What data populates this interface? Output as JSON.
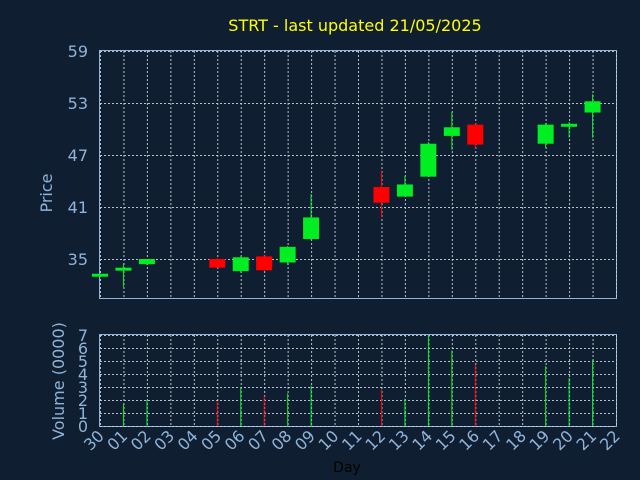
{
  "chart_data": {
    "type": "candlestick",
    "title": "STRT - last updated 21/05/2025",
    "colors": {
      "background": "#0f1f31",
      "up": "#00ee22",
      "down": "#ff0000",
      "title": "#ffff00",
      "text": "#8fb3d9",
      "grid": "#c8d4e0",
      "xlabel": "#000000"
    },
    "price_panel": {
      "ylabel": "Price",
      "yticks": [
        35,
        41,
        47,
        53,
        59
      ],
      "ylim": [
        30.5,
        59
      ]
    },
    "volume_panel": {
      "ylabel": "Volume (0000)",
      "yticks": [
        0,
        1,
        2,
        3,
        4,
        5,
        6,
        7
      ],
      "ylim": [
        0,
        7
      ]
    },
    "xlabel": "Day",
    "xticks": [
      "30",
      "01",
      "02",
      "03",
      "04",
      "05",
      "06",
      "07",
      "08",
      "09",
      "10",
      "11",
      "12",
      "13",
      "14",
      "15",
      "16",
      "17",
      "18",
      "19",
      "20",
      "21",
      "22"
    ],
    "candles": [
      {
        "day": "30",
        "open": 33.0,
        "high": 33.3,
        "low": 32.9,
        "close": 33.3,
        "volume": 0
      },
      {
        "day": "01",
        "open": 33.7,
        "high": 34.5,
        "low": 31.8,
        "close": 34.0,
        "volume": 1.7
      },
      {
        "day": "02",
        "open": 34.4,
        "high": 35.0,
        "low": 34.3,
        "close": 35.0,
        "volume": 2.0
      },
      {
        "day": "05",
        "open": 35.0,
        "high": 35.1,
        "low": 34.0,
        "close": 34.0,
        "volume": 1.9
      },
      {
        "day": "06",
        "open": 33.6,
        "high": 35.3,
        "low": 33.4,
        "close": 35.2,
        "volume": 3.0
      },
      {
        "day": "07",
        "open": 35.3,
        "high": 35.5,
        "low": 33.6,
        "close": 33.7,
        "volume": 2.3
      },
      {
        "day": "08",
        "open": 34.6,
        "high": 36.5,
        "low": 34.3,
        "close": 36.4,
        "volume": 2.5
      },
      {
        "day": "09",
        "open": 37.3,
        "high": 42.5,
        "low": 37.2,
        "close": 39.8,
        "volume": 3.1
      },
      {
        "day": "12",
        "open": 43.3,
        "high": 45.2,
        "low": 39.8,
        "close": 41.5,
        "volume": 2.8
      },
      {
        "day": "13",
        "open": 42.2,
        "high": 44.6,
        "low": 42.2,
        "close": 43.6,
        "volume": 2.1
      },
      {
        "day": "14",
        "open": 44.5,
        "high": 48.5,
        "low": 44.5,
        "close": 48.3,
        "volume": 7.0
      },
      {
        "day": "15",
        "open": 49.2,
        "high": 52.0,
        "low": 47.6,
        "close": 50.2,
        "volume": 5.8
      },
      {
        "day": "16",
        "open": 50.5,
        "high": 50.7,
        "low": 47.7,
        "close": 48.2,
        "volume": 4.7
      },
      {
        "day": "19",
        "open": 48.3,
        "high": 50.7,
        "low": 47.8,
        "close": 50.5,
        "volume": 4.6
      },
      {
        "day": "20",
        "open": 50.4,
        "high": 50.8,
        "low": 49.0,
        "close": 50.6,
        "volume": 3.7
      },
      {
        "day": "21",
        "open": 51.9,
        "high": 54.0,
        "low": 49.0,
        "close": 53.2,
        "volume": 5.1
      }
    ]
  }
}
